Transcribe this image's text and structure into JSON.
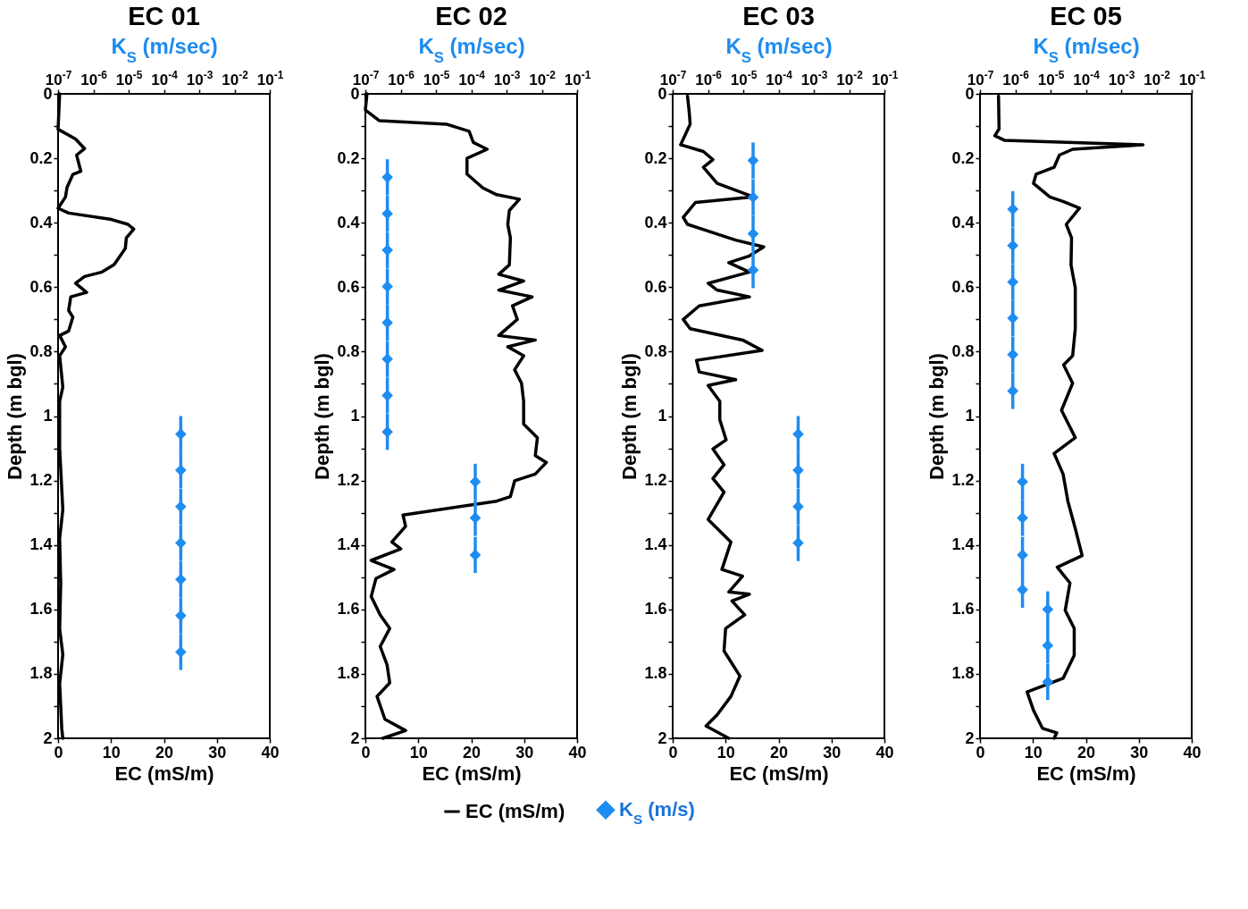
{
  "chart_data": [
    {
      "type": "line",
      "title": "EC 01",
      "xlabel": "EC (mS/m)",
      "ylabel": "Depth (m bgl)",
      "x2label": "K$_{S}$ (m/sec)",
      "xlim": [
        0,
        40
      ],
      "xticks": [
        0,
        10,
        20,
        30,
        40
      ],
      "x2lim": [
        1e-07,
        0.1
      ],
      "x2ticks": [
        {
          "value": 1e-07,
          "label": "10$^{-7}$"
        },
        {
          "value": 1e-06,
          "label": "10$^{-6}$"
        },
        {
          "value": 1e-05,
          "label": "10$^{-5}$"
        },
        {
          "value": 0.0001,
          "label": "10$^{-4}$"
        },
        {
          "value": 0.001,
          "label": "10$^{-3}$"
        },
        {
          "value": 0.01,
          "label": "10$^{-2}$"
        },
        {
          "value": 0.1,
          "label": "10$^{-1}$"
        }
      ],
      "log": "x2",
      "ylim": [
        2,
        0
      ],
      "yticks": [
        0,
        {
          "value": 0.1,
          "label": null
        },
        0.2,
        {
          "value": 0.3,
          "label": null
        },
        0.4,
        {
          "value": 0.5,
          "label": null
        },
        0.6,
        {
          "value": 0.7,
          "label": null
        },
        0.8,
        {
          "value": 0.9,
          "label": null
        },
        1,
        {
          "value": 1.1,
          "label": null
        },
        1.2,
        {
          "value": 1.3,
          "label": null
        },
        1.4,
        {
          "value": 1.5,
          "label": null
        },
        1.6,
        {
          "value": 1.7,
          "label": null
        },
        1.8,
        {
          "value": 1.9,
          "label": null
        },
        2
      ],
      "grid": false,
      "legend": "bottom",
      "series": [
        {
          "name": "EC (mS/m)",
          "color": "#000000",
          "marker": "none",
          "line_style": "solid",
          "x": [
            0.3,
            0,
            3.3,
            5,
            3.5,
            4.3,
            2.8,
            1.7,
            1.4,
            0,
            2,
            10.1,
            13.2,
            14.3,
            12.9,
            12.7,
            10.6,
            8.3,
            5,
            3.3,
            5.4,
            2.4,
            2,
            2.8,
            2,
            0.3,
            1.4,
            0.3,
            0.9,
            0.3,
            0.3,
            0.9,
            0.3,
            0.5,
            0.3,
            0.9,
            0.3,
            0.7,
            0.9
          ],
          "values": [
            0,
            0.11,
            0.14,
            0.17,
            0.19,
            0.24,
            0.25,
            0.29,
            0.32,
            0.355,
            0.37,
            0.39,
            0.405,
            0.42,
            0.447,
            0.48,
            0.53,
            0.553,
            0.567,
            0.588,
            0.616,
            0.63,
            0.672,
            0.693,
            0.736,
            0.75,
            0.785,
            0.813,
            0.91,
            0.954,
            1.1,
            1.29,
            1.38,
            1.52,
            1.66,
            1.74,
            1.83,
            1.97,
            2
          ]
        },
        {
          "name": "K$_{S}$ (m/s)",
          "type": "scatter",
          "axis": "x2",
          "color": "#1e8cf0",
          "marker": "diamond",
          "x": [
            0.0003,
            0.0003,
            0.0003,
            0.0003,
            0.0003,
            0.0003,
            0.0003
          ],
          "values": [
            1.056,
            1.168,
            1.281,
            1.394,
            1.507,
            1.619,
            1.732
          ],
          "errors": [
            0.056,
            0.056,
            0.056,
            0.056,
            0.056,
            0.056,
            0.056
          ]
        }
      ]
    },
    {
      "type": "line",
      "title": "EC 02",
      "xlabel": "EC (mS/m)",
      "ylabel": "Depth (m bgl)",
      "x2label": "K$_{S}$ (m/sec)",
      "xlim": [
        0,
        40
      ],
      "xticks": [
        0,
        10,
        20,
        30,
        40
      ],
      "x2lim": [
        1e-07,
        0.1
      ],
      "x2ticks": [
        {
          "value": 1e-07,
          "label": "10$^{-7}$"
        },
        {
          "value": 1e-06,
          "label": "10$^{-6}$"
        },
        {
          "value": 1e-05,
          "label": "10$^{-5}$"
        },
        {
          "value": 0.0001,
          "label": "10$^{-4}$"
        },
        {
          "value": 0.001,
          "label": "10$^{-3}$"
        },
        {
          "value": 0.01,
          "label": "10$^{-2}$"
        },
        {
          "value": 0.1,
          "label": "10$^{-1}$"
        }
      ],
      "log": "x2",
      "ylim": [
        2,
        0
      ],
      "yticks": [
        0,
        {
          "value": 0.1,
          "label": null
        },
        0.2,
        {
          "value": 0.3,
          "label": null
        },
        0.4,
        {
          "value": 0.5,
          "label": null
        },
        0.6,
        {
          "value": 0.7,
          "label": null
        },
        0.8,
        {
          "value": 0.9,
          "label": null
        },
        1,
        {
          "value": 1.1,
          "label": null
        },
        1.2,
        {
          "value": 1.3,
          "label": null
        },
        1.4,
        {
          "value": 1.5,
          "label": null
        },
        1.6,
        {
          "value": 1.7,
          "label": null
        },
        1.8,
        {
          "value": 1.9,
          "label": null
        },
        2
      ],
      "grid": false,
      "legend": "bottom",
      "series": [
        {
          "color": "#000000",
          "marker": "none",
          "line_style": "solid",
          "x": [
            0.3,
            0,
            2.6,
            15.3,
            19.6,
            20.4,
            23,
            19.2,
            19.2,
            22.2,
            24.8,
            29.1,
            27.2,
            26.9,
            27.4,
            27.2,
            25.2,
            29.9,
            25.2,
            31.5,
            27.8,
            28.7,
            25.2,
            32.1,
            26.9,
            29.9,
            28.2,
            29.5,
            29.9,
            29.9,
            32.5,
            32.1,
            34.2,
            32.1,
            28.2,
            27.4,
            24.8,
            7.1,
            7.6,
            5,
            6.7,
            1.1,
            5.4,
            2,
            1.1,
            2.8,
            4.6,
            2.8,
            4.1,
            4.6,
            2.2,
            3.7,
            7.6,
            3.3
          ],
          "values": [
            0,
            0.05,
            0.083,
            0.094,
            0.116,
            0.151,
            0.172,
            0.2,
            0.249,
            0.292,
            0.313,
            0.327,
            0.362,
            0.405,
            0.447,
            0.531,
            0.56,
            0.581,
            0.609,
            0.63,
            0.658,
            0.7,
            0.75,
            0.764,
            0.785,
            0.813,
            0.856,
            0.898,
            0.954,
            1.025,
            1.067,
            1.123,
            1.144,
            1.18,
            1.201,
            1.25,
            1.264,
            1.307,
            1.342,
            1.391,
            1.412,
            1.448,
            1.476,
            1.504,
            1.56,
            1.617,
            1.659,
            1.715,
            1.772,
            1.828,
            1.87,
            1.941,
            1.976,
            2
          ]
        },
        {
          "type": "scatter",
          "axis": "x2",
          "color": "#1e8cf0",
          "marker": "diamond",
          "x": [
            4.2e-07,
            4.2e-07,
            4.2e-07,
            4.2e-07,
            4.2e-07,
            4.2e-07,
            4.2e-07,
            4.2e-07,
            0.00013,
            0.00013,
            0.00013
          ],
          "values": [
            0.259,
            0.372,
            0.485,
            0.598,
            0.71,
            0.823,
            0.936,
            1.049,
            1.204,
            1.316,
            1.431
          ],
          "errors": [
            0.056,
            0.056,
            0.056,
            0.056,
            0.056,
            0.056,
            0.056,
            0.056,
            0.056,
            0.056,
            0.056
          ]
        }
      ]
    },
    {
      "type": "line",
      "title": "EC 03",
      "xlabel": "EC (mS/m)",
      "ylabel": "Depth (m bgl)",
      "x2label": "K$_{S}$ (m/sec)",
      "xlim": [
        0,
        40
      ],
      "xticks": [
        0,
        10,
        20,
        30,
        40
      ],
      "x2lim": [
        1e-07,
        0.1
      ],
      "x2ticks": [
        {
          "value": 1e-07,
          "label": "10$^{-7}$"
        },
        {
          "value": 1e-06,
          "label": "10$^{-6}$"
        },
        {
          "value": 1e-05,
          "label": "10$^{-5}$"
        },
        {
          "value": 0.0001,
          "label": "10$^{-4}$"
        },
        {
          "value": 0.001,
          "label": "10$^{-3}$"
        },
        {
          "value": 0.01,
          "label": "10$^{-2}$"
        },
        {
          "value": 0.1,
          "label": "10$^{-1}$"
        }
      ],
      "log": "x2",
      "ylim": [
        2,
        0
      ],
      "yticks": [
        0,
        {
          "value": 0.1,
          "label": null
        },
        0.2,
        {
          "value": 0.3,
          "label": null
        },
        0.4,
        {
          "value": 0.5,
          "label": null
        },
        0.6,
        {
          "value": 0.7,
          "label": null
        },
        0.8,
        {
          "value": 0.9,
          "label": null
        },
        1,
        {
          "value": 1.1,
          "label": null
        },
        1.2,
        {
          "value": 1.3,
          "label": null
        },
        1.4,
        {
          "value": 1.5,
          "label": null
        },
        1.6,
        {
          "value": 1.7,
          "label": null
        },
        1.8,
        {
          "value": 1.9,
          "label": null
        },
        2
      ],
      "grid": false,
      "legend": "bottom",
      "series": [
        {
          "color": "#000000",
          "marker": "none",
          "line_style": "solid",
          "x": [
            2.8,
            3.1,
            3.3,
            1.5,
            5.8,
            7.6,
            5.8,
            8.4,
            15.3,
            4.3,
            2,
            2.8,
            11.9,
            17.2,
            14.5,
            10.6,
            14.5,
            6.7,
            8.4,
            14.5,
            5,
            2,
            3.3,
            13.2,
            16.9,
            4.5,
            5,
            11.9,
            6.7,
            8.9,
            8.9,
            10.1,
            7.6,
            9.7,
            7.6,
            9.7,
            6.7,
            11,
            9.3,
            13.2,
            10.6,
            14.5,
            11.2,
            13.6,
            10,
            9.7,
            12.7,
            11,
            8.4,
            6.3,
            10.6
          ],
          "values": [
            0.007,
            0.052,
            0.094,
            0.158,
            0.179,
            0.204,
            0.228,
            0.278,
            0.32,
            0.337,
            0.383,
            0.405,
            0.454,
            0.475,
            0.503,
            0.524,
            0.553,
            0.588,
            0.609,
            0.63,
            0.658,
            0.7,
            0.729,
            0.764,
            0.796,
            0.827,
            0.863,
            0.887,
            0.905,
            0.954,
            1.011,
            1.074,
            1.102,
            1.151,
            1.194,
            1.236,
            1.321,
            1.391,
            1.476,
            1.497,
            1.546,
            1.553,
            1.574,
            1.617,
            1.659,
            1.729,
            1.807,
            1.87,
            1.927,
            1.962,
            2
          ]
        },
        {
          "type": "scatter",
          "axis": "x2",
          "color": "#1e8cf0",
          "marker": "diamond",
          "x": [
            1.9e-05,
            1.9e-05,
            1.9e-05,
            1.9e-05,
            0.00036,
            0.00036,
            0.00036,
            0.00036
          ],
          "values": [
            0.207,
            0.321,
            0.434,
            0.547,
            1.056,
            1.168,
            1.281,
            1.394
          ],
          "errors": [
            0.056,
            0.056,
            0.056,
            0.056,
            0.056,
            0.056,
            0.056,
            0.056
          ]
        }
      ]
    },
    {
      "type": "line",
      "title": "EC 05",
      "xlabel": "EC (mS/m)",
      "ylabel": "Depth (m bgl)",
      "x2label": "K$_{S}$ (m/sec)",
      "xlim": [
        0,
        40
      ],
      "xticks": [
        0,
        10,
        20,
        30,
        40
      ],
      "x2lim": [
        1e-07,
        0.1
      ],
      "x2ticks": [
        {
          "value": 1e-07,
          "label": "10$^{-7}$"
        },
        {
          "value": 1e-06,
          "label": "10$^{-6}$"
        },
        {
          "value": 1e-05,
          "label": "10$^{-5}$"
        },
        {
          "value": 0.0001,
          "label": "10$^{-4}$"
        },
        {
          "value": 0.001,
          "label": "10$^{-3}$"
        },
        {
          "value": 0.01,
          "label": "10$^{-2}$"
        },
        {
          "value": 0.1,
          "label": "10$^{-1}$"
        }
      ],
      "log": "x2",
      "ylim": [
        2,
        0
      ],
      "yticks": [
        0,
        {
          "value": 0.1,
          "label": null
        },
        0.2,
        {
          "value": 0.3,
          "label": null
        },
        0.4,
        {
          "value": 0.5,
          "label": null
        },
        0.6,
        {
          "value": 0.7,
          "label": null
        },
        0.8,
        {
          "value": 0.9,
          "label": null
        },
        1,
        {
          "value": 1.1,
          "label": null
        },
        1.2,
        {
          "value": 1.3,
          "label": null
        },
        1.4,
        {
          "value": 1.5,
          "label": null
        },
        1.6,
        {
          "value": 1.7,
          "label": null
        },
        1.8,
        {
          "value": 1.9,
          "label": null
        },
        2
      ],
      "grid": false,
      "legend": "bottom",
      "series": [
        {
          "color": "#000000",
          "marker": "none",
          "line_style": "solid",
          "x": [
            3.5,
            3.6,
            2.8,
            4.6,
            30.8,
            17.5,
            15,
            14,
            10.6,
            10.1,
            13.2,
            15.7,
            18.8,
            16.3,
            17.3,
            17.2,
            18,
            18,
            17.5,
            15.8,
            17.5,
            15.4,
            18,
            14,
            15.7,
            16.6,
            18,
            19.3,
            14.6,
            17,
            16.1,
            17.8,
            17.8,
            15.7,
            8.9,
            10.1,
            11.8,
            14.5,
            14
          ],
          "values": [
            0.007,
            0.109,
            0.13,
            0.144,
            0.158,
            0.172,
            0.19,
            0.228,
            0.249,
            0.278,
            0.32,
            0.334,
            0.355,
            0.405,
            0.447,
            0.531,
            0.602,
            0.729,
            0.813,
            0.841,
            0.898,
            0.982,
            1.067,
            1.116,
            1.18,
            1.264,
            1.349,
            1.433,
            1.469,
            1.518,
            1.603,
            1.659,
            1.743,
            1.814,
            1.856,
            1.913,
            1.969,
            1.983,
            2
          ]
        },
        {
          "type": "scatter",
          "axis": "x2",
          "color": "#1e8cf0",
          "marker": "diamond",
          "x": [
            8.5e-07,
            8.5e-07,
            8.5e-07,
            8.5e-07,
            8.5e-07,
            8.5e-07,
            1.6e-06,
            1.6e-06,
            1.6e-06,
            1.6e-06,
            8.3e-06,
            8.3e-06,
            8.3e-06
          ],
          "values": [
            0.358,
            0.471,
            0.584,
            0.696,
            0.809,
            0.922,
            1.204,
            1.316,
            1.431,
            1.539,
            1.6,
            1.712,
            1.825
          ],
          "errors": [
            0.056,
            0.056,
            0.056,
            0.056,
            0.056,
            0.056,
            0.056,
            0.056,
            0.056,
            0.056,
            0.056,
            0.056,
            0.056
          ]
        }
      ]
    }
  ]
}
